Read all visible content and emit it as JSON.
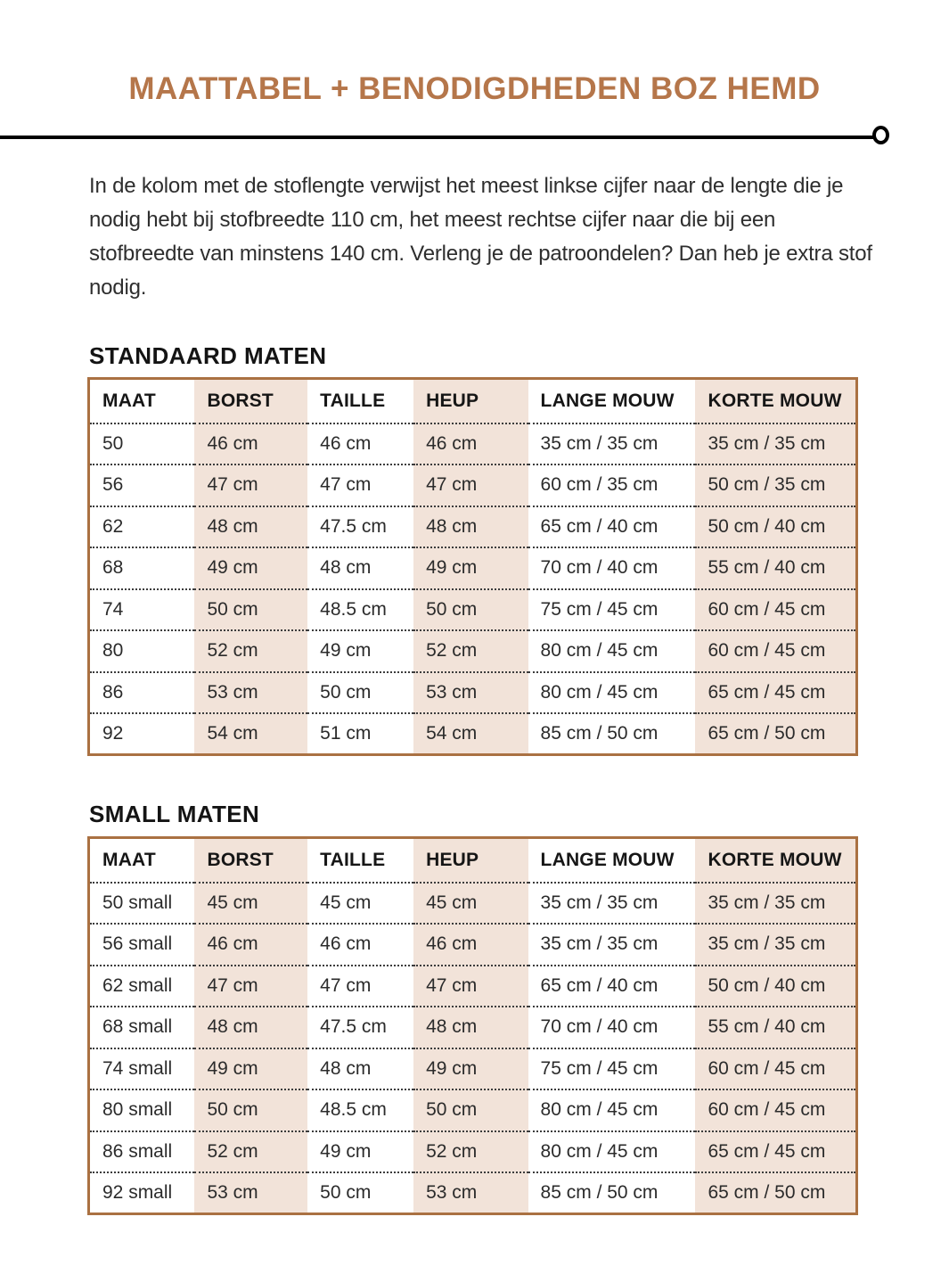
{
  "page": {
    "title": "MAATTABEL + BENODIGDHEDEN BOZ HEMD",
    "intro": "In de kolom met de stoflengte verwijst het meest linkse cijfer naar de lengte die je nodig hebt bij stofbreedte 110 cm, het meest rechtse cijfer naar die bij een stofbreedte van minstens 140 cm. Verleng je de patroondelen? Dan heb je extra stof nodig."
  },
  "colors": {
    "accent": "#b5764a",
    "table_border": "#aa7142",
    "shaded_cell": "#f2e3d9",
    "rule": "#000000"
  },
  "tables": [
    {
      "title": "STANDAARD MATEN",
      "headers": [
        "MAAT",
        "BORST",
        "TAILLE",
        "HEUP",
        "LANGE MOUW",
        "KORTE MOUW"
      ],
      "rows": [
        [
          "50",
          "46 cm",
          "46 cm",
          "46 cm",
          "35 cm / 35 cm",
          "35 cm / 35 cm"
        ],
        [
          "56",
          "47 cm",
          "47 cm",
          "47 cm",
          "60 cm / 35 cm",
          "50 cm / 35 cm"
        ],
        [
          "62",
          "48 cm",
          "47.5 cm",
          "48 cm",
          "65 cm / 40 cm",
          "50 cm / 40 cm"
        ],
        [
          "68",
          "49 cm",
          "48 cm",
          "49 cm",
          "70 cm / 40 cm",
          "55 cm / 40 cm"
        ],
        [
          "74",
          "50 cm",
          "48.5 cm",
          "50 cm",
          "75 cm / 45 cm",
          "60 cm / 45 cm"
        ],
        [
          "80",
          "52 cm",
          "49 cm",
          "52 cm",
          "80 cm / 45 cm",
          "60 cm / 45 cm"
        ],
        [
          "86",
          "53 cm",
          "50 cm",
          "53 cm",
          "80 cm / 45 cm",
          "65 cm / 45 cm"
        ],
        [
          "92",
          "54 cm",
          "51 cm",
          "54 cm",
          "85 cm / 50 cm",
          "65 cm / 50 cm"
        ]
      ]
    },
    {
      "title": "SMALL MATEN",
      "headers": [
        "MAAT",
        "BORST",
        "TAILLE",
        "HEUP",
        "LANGE MOUW",
        "KORTE MOUW"
      ],
      "rows": [
        [
          "50 small",
          "45 cm",
          "45 cm",
          "45 cm",
          "35 cm / 35 cm",
          "35 cm / 35 cm"
        ],
        [
          "56 small",
          "46 cm",
          "46 cm",
          "46 cm",
          "35 cm / 35 cm",
          "35 cm / 35 cm"
        ],
        [
          "62 small",
          "47 cm",
          "47 cm",
          "47 cm",
          "65 cm / 40 cm",
          "50 cm / 40 cm"
        ],
        [
          "68 small",
          "48 cm",
          "47.5 cm",
          "48 cm",
          "70 cm / 40 cm",
          "55 cm / 40 cm"
        ],
        [
          "74 small",
          "49 cm",
          "48 cm",
          "49 cm",
          "75 cm / 45 cm",
          "60 cm / 45 cm"
        ],
        [
          "80 small",
          "50 cm",
          "48.5 cm",
          "50 cm",
          "80 cm / 45 cm",
          "60 cm / 45 cm"
        ],
        [
          "86 small",
          "52 cm",
          "49 cm",
          "52 cm",
          "80 cm / 45 cm",
          "65 cm / 45 cm"
        ],
        [
          "92 small",
          "53 cm",
          "50 cm",
          "53 cm",
          "85 cm / 50 cm",
          "65 cm / 50 cm"
        ]
      ]
    }
  ]
}
